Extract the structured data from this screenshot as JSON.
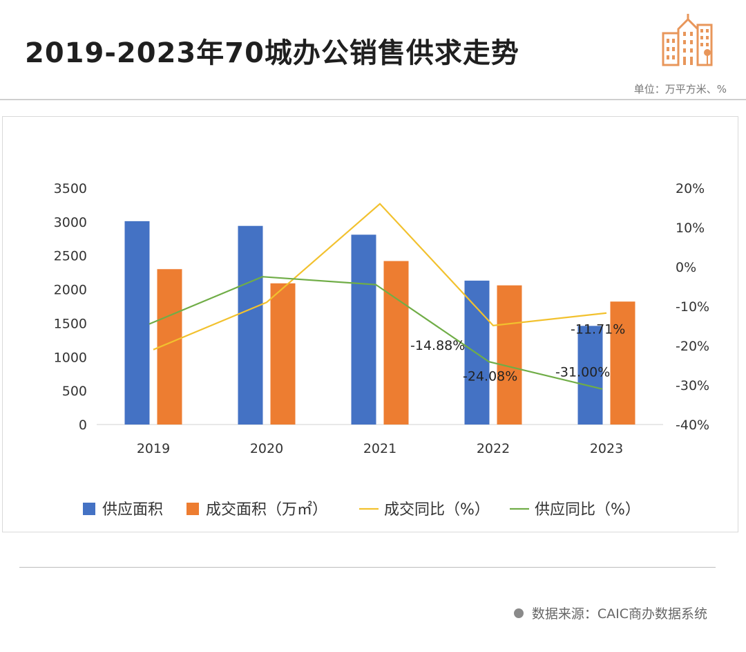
{
  "header": {
    "title": "2019-2023年70城办公销售供求走势",
    "unit_note": "单位：万平方米、%"
  },
  "footer": {
    "source": "数据来源：CAIC商办数据系统"
  },
  "colors": {
    "supply_bar": "#4472C4",
    "deal_bar": "#ED7D31",
    "deal_yoy_line": "#F2C12E",
    "supply_yoy_line": "#70AD47",
    "logo": "#E8965A"
  },
  "chart_data": {
    "type": "bar",
    "categories": [
      "2019",
      "2020",
      "2021",
      "2022",
      "2023"
    ],
    "series": [
      {
        "name": "供应面积",
        "kind": "bar",
        "axis": "left",
        "values": [
          3010,
          2940,
          2810,
          2130,
          1460
        ]
      },
      {
        "name": "成交面积（万㎡）",
        "kind": "bar",
        "axis": "left",
        "values": [
          2300,
          2090,
          2420,
          2060,
          1820
        ]
      },
      {
        "name": "成交同比（%）",
        "kind": "line",
        "axis": "right",
        "values": [
          -21,
          -9,
          16,
          -14.88,
          -11.71
        ]
      },
      {
        "name": "供应同比（%）",
        "kind": "line",
        "axis": "right",
        "values": [
          -14.5,
          -2.5,
          -4.5,
          -24.08,
          -31.0
        ]
      }
    ],
    "left_axis": {
      "min": 0,
      "max": 3500,
      "ticks": [
        "0",
        "500",
        "1000",
        "1500",
        "2000",
        "2500",
        "3000",
        "3500"
      ]
    },
    "right_axis": {
      "min": -40,
      "max": 20,
      "ticks": [
        "-40%",
        "-30%",
        "-20%",
        "-10%",
        "0%",
        "10%",
        "20%"
      ]
    },
    "data_labels": [
      {
        "series": 2,
        "index": 3,
        "text": "-14.88%"
      },
      {
        "series": 2,
        "index": 4,
        "text": "-11.71%"
      },
      {
        "series": 3,
        "index": 3,
        "text": "-24.08%"
      },
      {
        "series": 3,
        "index": 4,
        "text": "-31.00%"
      }
    ],
    "legend_position": "bottom",
    "grid": false
  }
}
